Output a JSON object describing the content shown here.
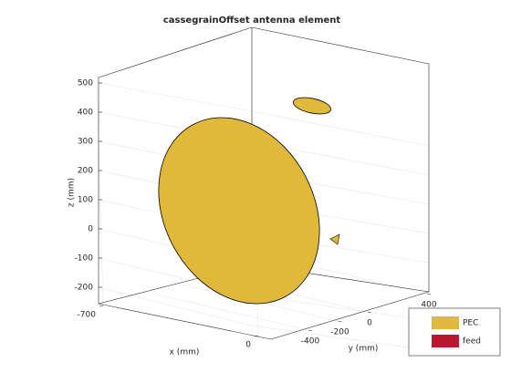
{
  "chart_data": {
    "type": "3d",
    "title": "cassegrainOffset antenna element",
    "xlabel": "x (mm)",
    "ylabel": "y (mm)",
    "zlabel": "z (mm)",
    "xticks": [
      -700,
      0
    ],
    "yticks": [
      -400,
      -200,
      0,
      400
    ],
    "zticks": [
      -200,
      -100,
      0,
      100,
      200,
      300,
      400,
      500
    ],
    "legend": [
      {
        "name": "PEC",
        "color": "#e0b83a"
      },
      {
        "name": "feed",
        "color": "#b8182f"
      }
    ]
  }
}
